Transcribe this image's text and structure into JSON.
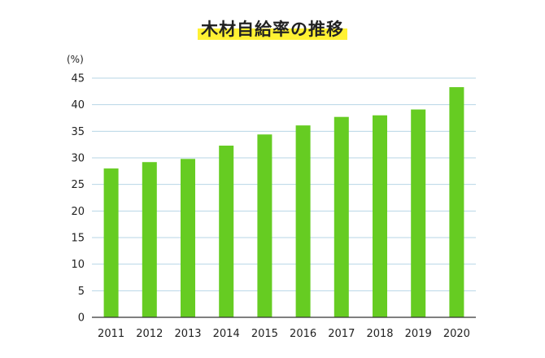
{
  "chart_data": {
    "type": "bar",
    "title": "木材自給率の推移",
    "ylabel": "(%)",
    "xlabel": "",
    "categories": [
      "2011",
      "2012",
      "2013",
      "2014",
      "2015",
      "2016",
      "2017",
      "2018",
      "2019",
      "2020"
    ],
    "values": [
      28.0,
      29.2,
      29.8,
      32.3,
      34.4,
      36.1,
      37.7,
      38.0,
      39.1,
      43.3
    ],
    "ylim": [
      0,
      45
    ],
    "yticks": [
      0,
      5,
      10,
      15,
      20,
      25,
      30,
      35,
      40,
      45
    ],
    "grid": true,
    "colors": {
      "bar": "#66cc22",
      "grid": "#b7d6e6",
      "axis": "#333333",
      "title_highlight": "#fff133"
    }
  }
}
